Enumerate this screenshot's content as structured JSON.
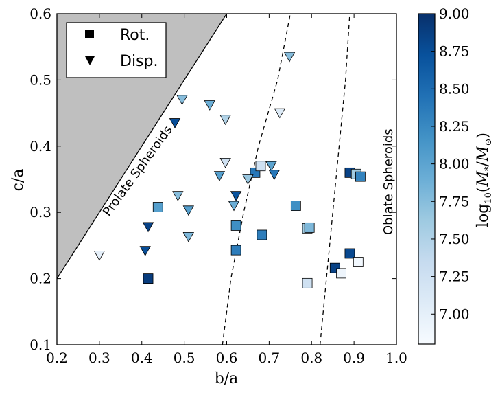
{
  "chart_data": {
    "type": "scatter",
    "xlabel": "b/a",
    "ylabel": "c/a",
    "xlim": [
      0.2,
      1.0
    ],
    "ylim": [
      0.1,
      0.6
    ],
    "xticks": [
      "0.2",
      "0.3",
      "0.4",
      "0.5",
      "0.6",
      "0.7",
      "0.8",
      "0.9",
      "1.0"
    ],
    "yticks": [
      "0.1",
      "0.2",
      "0.3",
      "0.4",
      "0.5",
      "0.6"
    ],
    "grid": false,
    "annotations": {
      "prolate": "Prolate Spheroids",
      "oblate": "Oblate Spheroids"
    },
    "prolate_boundary": [
      [
        0.2,
        0.2
      ],
      [
        0.6,
        0.6
      ]
    ],
    "dashed_curves": [
      [
        [
          0.59,
          0.1
        ],
        [
          0.61,
          0.2
        ],
        [
          0.64,
          0.3
        ],
        [
          0.675,
          0.4
        ],
        [
          0.72,
          0.5
        ],
        [
          0.75,
          0.6
        ]
      ],
      [
        [
          0.82,
          0.1
        ],
        [
          0.835,
          0.2
        ],
        [
          0.85,
          0.3
        ],
        [
          0.865,
          0.4
        ],
        [
          0.88,
          0.5
        ],
        [
          0.89,
          0.6
        ]
      ]
    ],
    "legend": {
      "position": "top-left",
      "entries": [
        {
          "marker": "square",
          "label": "Rot."
        },
        {
          "marker": "triangle-down",
          "label": "Disp."
        }
      ]
    },
    "colorbar": {
      "label": "log10(M*/M⊙)",
      "label_parts": {
        "log": "log",
        "sub": "10",
        "open": "(",
        "m": "M",
        "star": "*",
        "slash": "/",
        "msun": "M",
        "sun": "⊙",
        "close": ")"
      },
      "range": [
        6.8,
        9.0
      ],
      "ticks": [
        "7.00",
        "7.25",
        "7.50",
        "7.75",
        "8.00",
        "8.25",
        "8.50",
        "8.75",
        "9.00"
      ],
      "colormap": "Blues"
    },
    "series": [
      {
        "name": "Rot.",
        "marker": "square",
        "points": [
          {
            "x": 0.415,
            "y": 0.2,
            "mass": 8.9
          },
          {
            "x": 0.438,
            "y": 0.308,
            "mass": 8.05
          },
          {
            "x": 0.622,
            "y": 0.28,
            "mass": 8.2
          },
          {
            "x": 0.622,
            "y": 0.243,
            "mass": 8.35
          },
          {
            "x": 0.667,
            "y": 0.36,
            "mass": 8.4
          },
          {
            "x": 0.68,
            "y": 0.37,
            "mass": 7.25
          },
          {
            "x": 0.683,
            "y": 0.266,
            "mass": 8.35
          },
          {
            "x": 0.763,
            "y": 0.31,
            "mass": 8.2
          },
          {
            "x": 0.79,
            "y": 0.276,
            "mass": 7.6
          },
          {
            "x": 0.795,
            "y": 0.277,
            "mass": 7.8
          },
          {
            "x": 0.79,
            "y": 0.193,
            "mass": 7.25
          },
          {
            "x": 0.855,
            "y": 0.216,
            "mass": 8.85
          },
          {
            "x": 0.87,
            "y": 0.208,
            "mass": 6.9
          },
          {
            "x": 0.89,
            "y": 0.238,
            "mass": 8.8
          },
          {
            "x": 0.89,
            "y": 0.36,
            "mass": 8.85
          },
          {
            "x": 0.905,
            "y": 0.358,
            "mass": 7.6
          },
          {
            "x": 0.91,
            "y": 0.225,
            "mass": 6.85
          },
          {
            "x": 0.915,
            "y": 0.354,
            "mass": 8.3
          }
        ]
      },
      {
        "name": "Disp.",
        "marker": "triangle-down",
        "points": [
          {
            "x": 0.3,
            "y": 0.235,
            "mass": 7.0
          },
          {
            "x": 0.408,
            "y": 0.242,
            "mass": 8.75
          },
          {
            "x": 0.415,
            "y": 0.278,
            "mass": 8.85
          },
          {
            "x": 0.478,
            "y": 0.435,
            "mass": 8.75
          },
          {
            "x": 0.485,
            "y": 0.325,
            "mass": 7.75
          },
          {
            "x": 0.495,
            "y": 0.47,
            "mass": 7.75
          },
          {
            "x": 0.51,
            "y": 0.303,
            "mass": 8.05
          },
          {
            "x": 0.51,
            "y": 0.263,
            "mass": 7.8
          },
          {
            "x": 0.56,
            "y": 0.462,
            "mass": 7.9
          },
          {
            "x": 0.583,
            "y": 0.355,
            "mass": 8.05
          },
          {
            "x": 0.597,
            "y": 0.44,
            "mass": 7.5
          },
          {
            "x": 0.597,
            "y": 0.375,
            "mass": 7.25
          },
          {
            "x": 0.617,
            "y": 0.31,
            "mass": 7.9
          },
          {
            "x": 0.622,
            "y": 0.325,
            "mass": 8.7
          },
          {
            "x": 0.65,
            "y": 0.35,
            "mass": 7.65
          },
          {
            "x": 0.705,
            "y": 0.37,
            "mass": 8.0
          },
          {
            "x": 0.712,
            "y": 0.357,
            "mass": 8.4
          },
          {
            "x": 0.725,
            "y": 0.45,
            "mass": 7.1
          },
          {
            "x": 0.748,
            "y": 0.535,
            "mass": 7.75
          }
        ]
      }
    ]
  }
}
